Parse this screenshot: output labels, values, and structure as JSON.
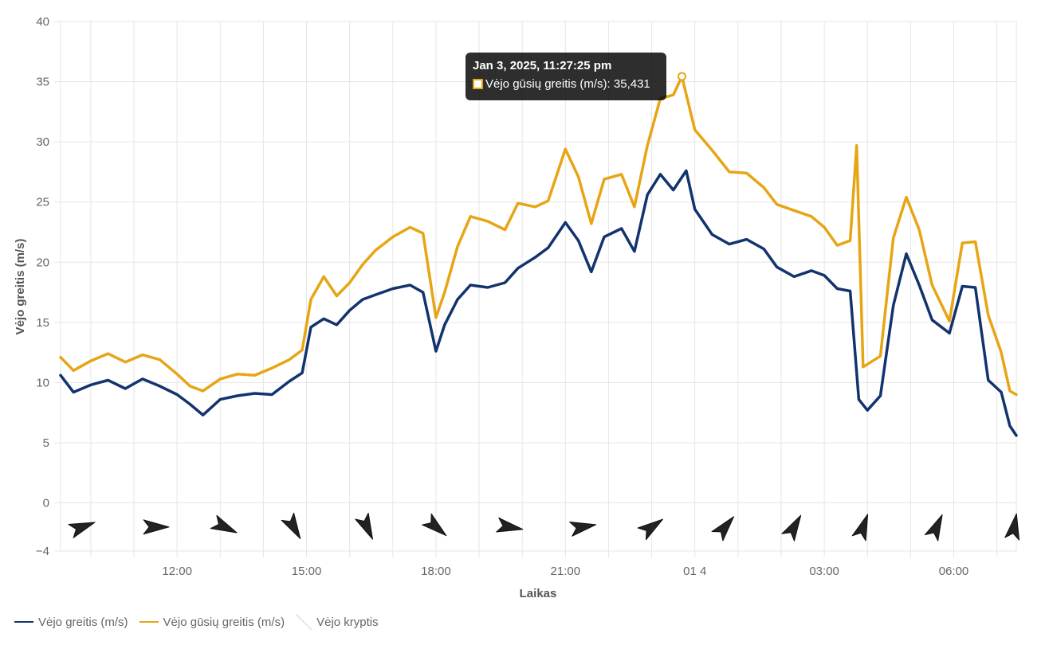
{
  "chart_data": {
    "type": "line",
    "y_axis": {
      "title": "Vėjo greitis (m/s)",
      "ticks": [
        40,
        35,
        30,
        25,
        20,
        15,
        10,
        5,
        0,
        -4
      ],
      "tick_labels": [
        "40",
        "35",
        "30",
        "25",
        "20",
        "15",
        "10",
        "5",
        "0",
        "−4"
      ],
      "ylim": [
        -4,
        40
      ]
    },
    "x_axis": {
      "title": "Laikas",
      "xlim_hours": [
        9.3,
        31.45
      ],
      "tick_labels": [
        "12:00",
        "15:00",
        "18:00",
        "21:00",
        "01 4",
        "03:00",
        "06:00"
      ],
      "tick_hours": [
        12,
        15,
        18,
        21,
        24,
        27,
        30
      ],
      "minor_grid_hours": [
        10,
        11,
        13,
        14,
        16,
        17,
        19,
        20,
        22,
        23,
        25,
        26,
        28,
        29,
        31
      ]
    },
    "series": [
      {
        "name": "Vėjo greitis (m/s)",
        "color": "#13336e",
        "points": [
          [
            9.3,
            10.6
          ],
          [
            9.6,
            9.2
          ],
          [
            10.0,
            9.8
          ],
          [
            10.4,
            10.2
          ],
          [
            10.8,
            9.5
          ],
          [
            11.2,
            10.3
          ],
          [
            11.6,
            9.7
          ],
          [
            12.0,
            9.0
          ],
          [
            12.3,
            8.2
          ],
          [
            12.6,
            7.3
          ],
          [
            13.0,
            8.6
          ],
          [
            13.4,
            8.9
          ],
          [
            13.8,
            9.1
          ],
          [
            14.2,
            9.0
          ],
          [
            14.6,
            10.1
          ],
          [
            14.9,
            10.8
          ],
          [
            15.1,
            14.6
          ],
          [
            15.4,
            15.3
          ],
          [
            15.7,
            14.8
          ],
          [
            16.0,
            16.0
          ],
          [
            16.3,
            16.9
          ],
          [
            16.6,
            17.3
          ],
          [
            17.0,
            17.8
          ],
          [
            17.4,
            18.1
          ],
          [
            17.7,
            17.5
          ],
          [
            18.0,
            12.6
          ],
          [
            18.2,
            14.8
          ],
          [
            18.5,
            16.9
          ],
          [
            18.8,
            18.1
          ],
          [
            19.2,
            17.9
          ],
          [
            19.6,
            18.3
          ],
          [
            19.9,
            19.5
          ],
          [
            20.3,
            20.4
          ],
          [
            20.6,
            21.2
          ],
          [
            21.0,
            23.3
          ],
          [
            21.3,
            21.8
          ],
          [
            21.6,
            19.2
          ],
          [
            21.9,
            22.1
          ],
          [
            22.3,
            22.8
          ],
          [
            22.6,
            20.9
          ],
          [
            22.9,
            25.6
          ],
          [
            23.2,
            27.3
          ],
          [
            23.5,
            26.0
          ],
          [
            23.8,
            27.6
          ],
          [
            24.0,
            24.4
          ],
          [
            24.4,
            22.3
          ],
          [
            24.8,
            21.5
          ],
          [
            25.2,
            21.9
          ],
          [
            25.6,
            21.1
          ],
          [
            25.9,
            19.6
          ],
          [
            26.3,
            18.8
          ],
          [
            26.7,
            19.3
          ],
          [
            27.0,
            18.9
          ],
          [
            27.3,
            17.8
          ],
          [
            27.6,
            17.6
          ],
          [
            27.8,
            8.6
          ],
          [
            28.0,
            7.7
          ],
          [
            28.3,
            8.9
          ],
          [
            28.6,
            16.4
          ],
          [
            28.9,
            20.7
          ],
          [
            29.2,
            18.1
          ],
          [
            29.5,
            15.2
          ],
          [
            29.9,
            14.1
          ],
          [
            30.2,
            18.0
          ],
          [
            30.5,
            17.9
          ],
          [
            30.8,
            10.2
          ],
          [
            31.1,
            9.2
          ],
          [
            31.3,
            6.4
          ],
          [
            31.45,
            5.6
          ]
        ]
      },
      {
        "name": "Vėjo gūsių greitis (m/s)",
        "color": "#e7a516",
        "points": [
          [
            9.3,
            12.1
          ],
          [
            9.6,
            11.0
          ],
          [
            10.0,
            11.8
          ],
          [
            10.4,
            12.4
          ],
          [
            10.8,
            11.7
          ],
          [
            11.2,
            12.3
          ],
          [
            11.6,
            11.9
          ],
          [
            12.0,
            10.7
          ],
          [
            12.3,
            9.7
          ],
          [
            12.6,
            9.3
          ],
          [
            13.0,
            10.3
          ],
          [
            13.4,
            10.7
          ],
          [
            13.8,
            10.6
          ],
          [
            14.2,
            11.2
          ],
          [
            14.6,
            11.9
          ],
          [
            14.9,
            12.7
          ],
          [
            15.1,
            16.9
          ],
          [
            15.4,
            18.8
          ],
          [
            15.7,
            17.2
          ],
          [
            16.0,
            18.3
          ],
          [
            16.3,
            19.8
          ],
          [
            16.6,
            21.0
          ],
          [
            17.0,
            22.1
          ],
          [
            17.4,
            22.9
          ],
          [
            17.7,
            22.4
          ],
          [
            18.0,
            15.4
          ],
          [
            18.2,
            17.5
          ],
          [
            18.5,
            21.3
          ],
          [
            18.8,
            23.8
          ],
          [
            19.2,
            23.4
          ],
          [
            19.6,
            22.7
          ],
          [
            19.9,
            24.9
          ],
          [
            20.3,
            24.6
          ],
          [
            20.6,
            25.1
          ],
          [
            21.0,
            29.4
          ],
          [
            21.3,
            27.1
          ],
          [
            21.6,
            23.2
          ],
          [
            21.9,
            26.9
          ],
          [
            22.3,
            27.3
          ],
          [
            22.6,
            24.6
          ],
          [
            22.9,
            29.7
          ],
          [
            23.2,
            33.6
          ],
          [
            23.5,
            33.9
          ],
          [
            23.7,
            35.431
          ],
          [
            24.0,
            31.0
          ],
          [
            24.4,
            29.3
          ],
          [
            24.8,
            27.5
          ],
          [
            25.2,
            27.4
          ],
          [
            25.6,
            26.2
          ],
          [
            25.9,
            24.8
          ],
          [
            26.3,
            24.3
          ],
          [
            26.7,
            23.8
          ],
          [
            27.0,
            22.9
          ],
          [
            27.3,
            21.4
          ],
          [
            27.6,
            21.8
          ],
          [
            27.75,
            29.7
          ],
          [
            27.9,
            11.3
          ],
          [
            28.3,
            12.2
          ],
          [
            28.6,
            22.0
          ],
          [
            28.9,
            25.4
          ],
          [
            29.2,
            22.7
          ],
          [
            29.5,
            18.1
          ],
          [
            29.9,
            15.1
          ],
          [
            30.2,
            21.6
          ],
          [
            30.5,
            21.7
          ],
          [
            30.8,
            15.6
          ],
          [
            31.1,
            12.5
          ],
          [
            31.3,
            9.3
          ],
          [
            31.45,
            9.0
          ]
        ]
      }
    ],
    "wind_direction_arrows": {
      "y_value": -2,
      "hours": [
        9.8,
        11.5,
        13.1,
        14.7,
        16.4,
        18.0,
        19.7,
        21.4,
        23.0,
        24.7,
        26.3,
        27.9,
        29.6,
        31.4
      ],
      "angles_deg": [
        160,
        180,
        205,
        240,
        245,
        220,
        190,
        170,
        145,
        130,
        120,
        110,
        115,
        100
      ]
    },
    "tooltip": {
      "title": "Jan 3, 2025, 11:27:25 pm",
      "label": "Vėjo gūsių greitis (m/s): 35,431",
      "hour": 23.7,
      "value": 35.431
    },
    "legend": [
      "Vėjo greitis (m/s)",
      "Vėjo gūsių greitis (m/s)",
      "Vėjo kryptis"
    ],
    "grid": true
  }
}
